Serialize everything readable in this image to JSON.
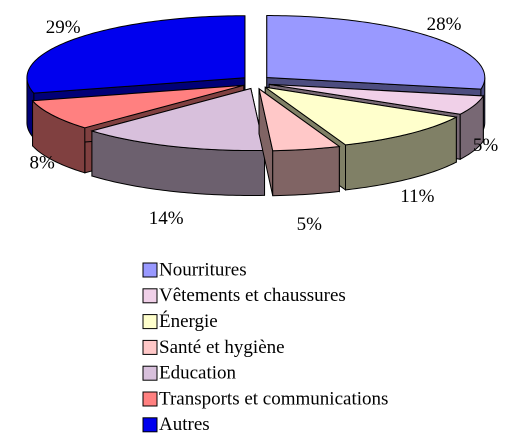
{
  "chart_data": {
    "type": "pie",
    "categories": [
      "Nourritures",
      "Vêtements et chaussures",
      "Énergie",
      "Santé et hygiène",
      "Education",
      "Transports et communications",
      "Autres"
    ],
    "values": [
      28,
      5,
      11,
      5,
      14,
      8,
      29
    ],
    "value_labels": [
      "28%",
      "5%",
      "11%",
      "5%",
      "14%",
      "8%",
      "29%"
    ],
    "colors": [
      "#9999ff",
      "#f0d0e8",
      "#ffffcc",
      "#ffc8c8",
      "#d8c0dc",
      "#ff8080",
      "#0000ee"
    ]
  }
}
